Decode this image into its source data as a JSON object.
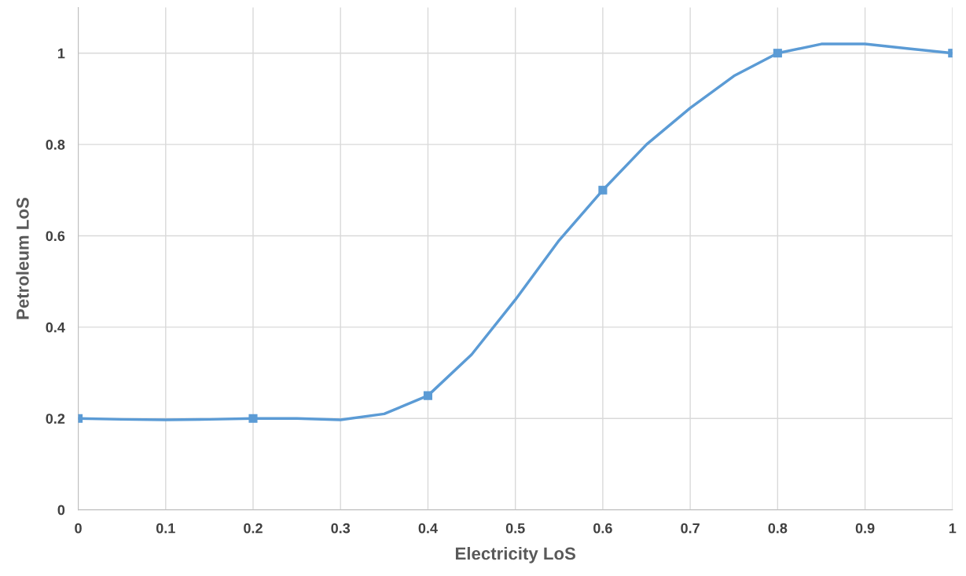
{
  "chart_data": {
    "type": "line",
    "xlabel": "Electricity LoS",
    "ylabel": "Petroleum LoS",
    "x": [
      0,
      0.2,
      0.4,
      0.6,
      0.8,
      1
    ],
    "series": [
      {
        "marker": "none",
        "color": "#5b9bd5",
        "x": [
          0,
          0.05,
          0.1,
          0.15,
          0.2,
          0.25,
          0.3,
          0.35,
          0.4,
          0.45,
          0.5,
          0.55,
          0.6,
          0.65,
          0.7,
          0.75,
          0.8,
          0.85,
          0.9,
          0.95,
          1
        ],
        "values": [
          0.2,
          0.198,
          0.197,
          0.198,
          0.2,
          0.2,
          0.197,
          0.21,
          0.25,
          0.34,
          0.46,
          0.59,
          0.7,
          0.8,
          0.88,
          0.95,
          1,
          1.02,
          1.02,
          1.01,
          1
        ]
      },
      {
        "type": "scatter",
        "color": "#5b9bd5",
        "values": [
          0.2,
          0.2,
          0.25,
          0.7,
          1,
          1
        ]
      }
    ],
    "xlim": [
      0,
      1
    ],
    "xticks": [
      0,
      0.1,
      0.2,
      0.3,
      0.4,
      0.5,
      0.6,
      0.7,
      0.8,
      0.9,
      1
    ],
    "ylim": [
      0,
      1.1
    ],
    "yticks": [
      0,
      0.2,
      0.4,
      0.6,
      0.8,
      1
    ],
    "grid": true,
    "marker": "square",
    "line_style": "solid",
    "legend": false
  }
}
